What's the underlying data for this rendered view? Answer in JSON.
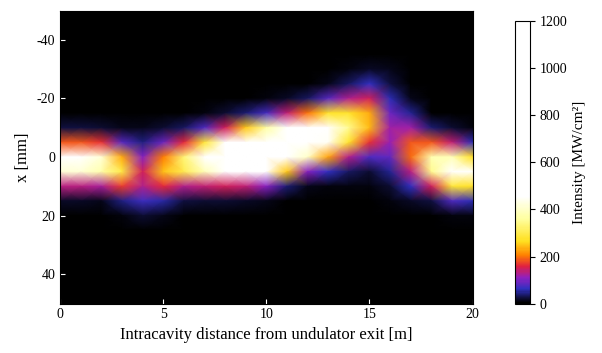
{
  "chart_data": {
    "type": "heatmap",
    "x_label": "Intracavity distance from undulator exit [m]",
    "y_label": "x [mm]",
    "x": [
      0,
      1,
      2,
      3,
      4,
      5,
      6,
      7,
      8,
      9,
      10,
      11,
      12,
      13,
      14,
      15,
      16,
      17,
      18,
      19,
      20
    ],
    "y": [
      -50,
      -45,
      -40,
      -35,
      -30,
      -25,
      -20,
      -15,
      -10,
      -5,
      0,
      5,
      10,
      15,
      20,
      25,
      30,
      35,
      40,
      45,
      50
    ],
    "cells": [
      [
        0,
        0,
        0,
        0,
        0,
        0,
        0,
        0,
        0,
        0,
        0,
        0,
        0,
        0,
        0,
        0,
        0,
        0,
        0,
        0,
        0
      ],
      [
        0,
        0,
        0,
        0,
        0,
        0,
        0,
        0,
        0,
        0,
        0,
        0,
        0,
        0,
        0,
        0,
        0,
        0,
        0,
        0,
        0
      ],
      [
        0,
        0,
        0,
        0,
        0,
        0,
        0,
        0,
        0,
        0,
        0,
        0,
        0,
        0,
        0,
        0,
        1,
        0,
        0,
        0,
        0
      ],
      [
        0,
        0,
        0,
        0,
        0,
        0,
        0,
        0,
        0,
        0,
        0,
        0,
        0,
        0,
        1,
        3,
        3,
        0,
        0,
        0,
        0
      ],
      [
        0,
        0,
        0,
        0,
        0,
        0,
        0,
        0,
        0,
        0,
        0,
        0,
        0,
        1,
        6,
        17,
        10,
        0,
        0,
        0,
        0
      ],
      [
        0,
        0,
        0,
        0,
        0,
        0,
        0,
        0,
        0,
        0,
        0,
        1,
        3,
        14,
        37,
        62,
        28,
        3,
        0,
        0,
        0
      ],
      [
        0,
        0,
        0,
        0,
        0,
        0,
        0,
        1,
        1,
        3,
        6,
        16,
        33,
        84,
        129,
        147,
        58,
        14,
        0,
        0,
        0
      ],
      [
        1,
        1,
        1,
        1,
        2,
        3,
        4,
        9,
        21,
        42,
        71,
        136,
        197,
        273,
        273,
        232,
        93,
        49,
        4,
        2,
        0
      ],
      [
        26,
        26,
        23,
        14,
        12,
        22,
        37,
        76,
        147,
        253,
        368,
        513,
        545,
        476,
        350,
        242,
        118,
        118,
        42,
        23,
        5
      ],
      [
        184,
        184,
        166,
        84,
        45,
        92,
        163,
        285,
        474,
        701,
        869,
        886,
        689,
        447,
        273,
        167,
        115,
        186,
        186,
        140,
        58
      ],
      [
        460,
        460,
        414,
        234,
        105,
        205,
        329,
        492,
        700,
        886,
        939,
        701,
        399,
        227,
        129,
        76,
        87,
        194,
        376,
        389,
        270
      ],
      [
        416,
        416,
        374,
        295,
        149,
        247,
        304,
        389,
        474,
        513,
        465,
        253,
        106,
        62,
        37,
        23,
        51,
        133,
        348,
        492,
        450
      ],
      [
        135,
        135,
        122,
        171,
        128,
        160,
        129,
        140,
        147,
        136,
        105,
        42,
        13,
        9,
        6,
        5,
        23,
        61,
        147,
        285,
        270
      ],
      [
        16,
        16,
        14,
        45,
        67,
        56,
        25,
        23,
        21,
        16,
        11,
        3,
        1,
        1,
        1,
        1,
        8,
        18,
        28,
        76,
        58
      ],
      [
        1,
        1,
        1,
        5,
        21,
        11,
        2,
        2,
        1,
        1,
        1,
        0,
        0,
        0,
        0,
        0,
        2,
        4,
        3,
        9,
        5
      ],
      [
        0,
        0,
        0,
        0,
        4,
        1,
        0,
        0,
        0,
        0,
        0,
        0,
        0,
        0,
        0,
        0,
        0,
        0,
        0,
        1,
        0
      ],
      [
        0,
        0,
        0,
        0,
        0,
        0,
        0,
        0,
        0,
        0,
        0,
        0,
        0,
        0,
        0,
        0,
        0,
        0,
        0,
        0,
        0
      ],
      [
        0,
        0,
        0,
        0,
        0,
        0,
        0,
        0,
        0,
        0,
        0,
        0,
        0,
        0,
        0,
        0,
        0,
        0,
        0,
        0,
        0
      ],
      [
        0,
        0,
        0,
        0,
        0,
        0,
        0,
        0,
        0,
        0,
        0,
        0,
        0,
        0,
        0,
        0,
        0,
        0,
        0,
        0,
        0
      ],
      [
        0,
        0,
        0,
        0,
        0,
        0,
        0,
        0,
        0,
        0,
        0,
        0,
        0,
        0,
        0,
        0,
        0,
        0,
        0,
        0,
        0
      ],
      [
        0,
        0,
        0,
        0,
        0,
        0,
        0,
        0,
        0,
        0,
        0,
        0,
        0,
        0,
        0,
        0,
        0,
        0,
        0,
        0,
        0
      ]
    ],
    "xlim": [
      0,
      20
    ],
    "xticks": [
      0,
      5,
      10,
      15,
      20
    ],
    "ylim": [
      50,
      -50
    ],
    "yticks": [
      -40,
      -20,
      0,
      20,
      40
    ],
    "colorbar_label": "Intensity [MW/cm²]",
    "colorbar_lim": [
      0,
      1200
    ],
    "colorbar_ticks": [
      0,
      200,
      400,
      600,
      800,
      1000,
      1200
    ]
  }
}
